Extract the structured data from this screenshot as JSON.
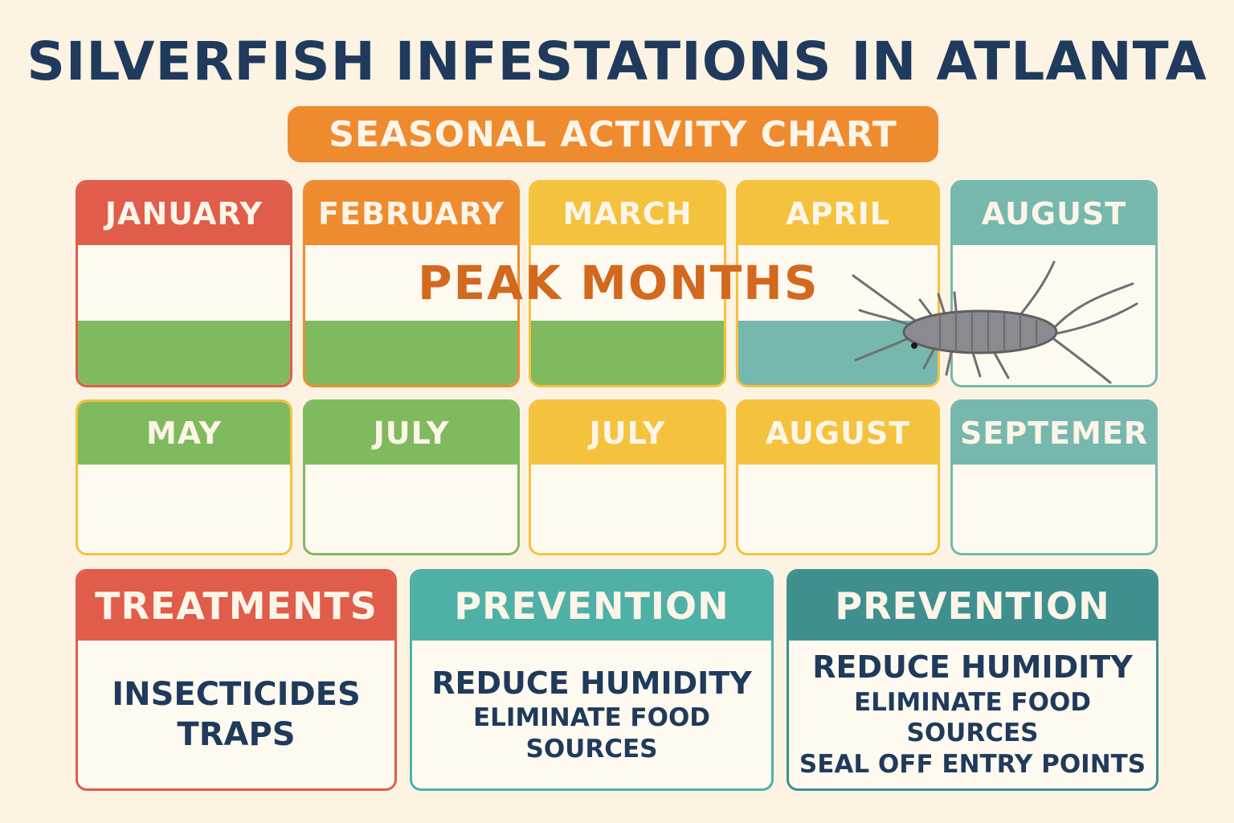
{
  "title": "SILVERFISH INFESTATIONS IN ATLANTA",
  "subtitle": "SEASONAL ACTIVITY CHART",
  "peak_label": "PEAK MONTHS",
  "colors": {
    "red": "#e05c4b",
    "orange": "#ef8b2f",
    "yellow": "#f4c23d",
    "teal": "#76b8ad",
    "green": "#7fba5e",
    "dark_teal": "#3f8f8f",
    "title": "#1f3a5c"
  },
  "months_row1": [
    {
      "label": "JANUARY",
      "color": "#e05c4b"
    },
    {
      "label": "FEBRUARY",
      "color": "#ef8b2f"
    },
    {
      "label": "MARCH",
      "color": "#f4c23d"
    },
    {
      "label": "APRIL",
      "color": "#f4c23d"
    },
    {
      "label": "AUGUST",
      "color": "#76b8ad"
    }
  ],
  "months_row2": [
    {
      "label": "MAY",
      "color": "#7fba5e"
    },
    {
      "label": "JULY",
      "color": "#7fba5e"
    },
    {
      "label": "JULY",
      "color": "#f4c23d"
    },
    {
      "label": "AUGUST",
      "color": "#f4c23d"
    },
    {
      "label": "SEPTEMER",
      "color": "#76b8ad"
    }
  ],
  "info_cards": [
    {
      "heading": "TREATMENTS",
      "color": "#e05c4b",
      "items": [
        "INSECTICIDES",
        "TRAPS"
      ]
    },
    {
      "heading": "PREVENTION",
      "color": "#4fb0a6",
      "items": [
        "REDUCE HUMIDITY",
        "ELIMINATE FOOD SOURCES"
      ]
    },
    {
      "heading": "PREVENTION",
      "color": "#3f8f8f",
      "items": [
        "REDUCE HUMIDITY",
        "ELIMINATE FOOD SOURCES",
        "SEAL OFF ENTRY POINTS"
      ]
    }
  ],
  "icons": [
    "silverfish-icon"
  ]
}
